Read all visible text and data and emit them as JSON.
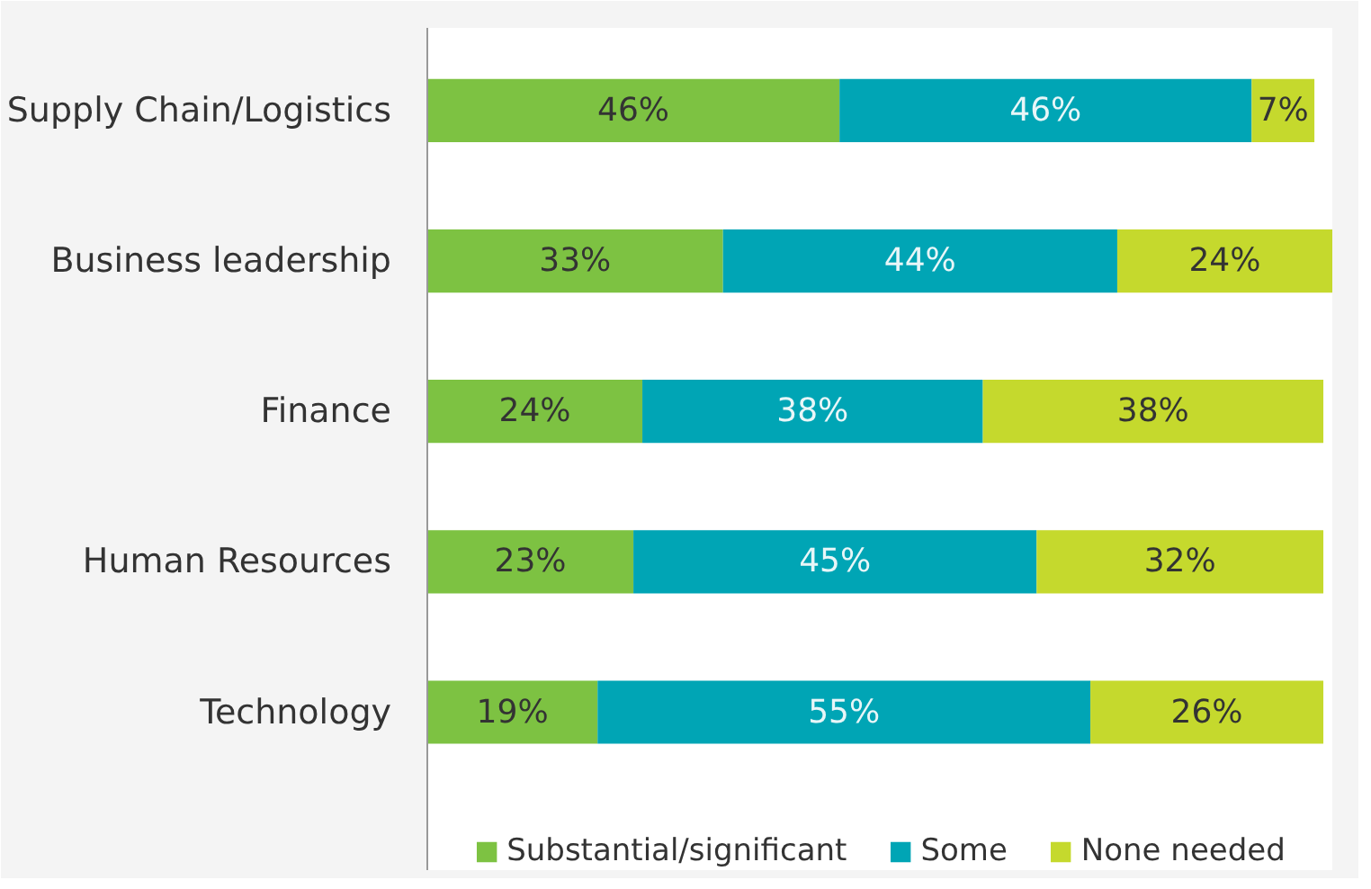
{
  "chart_data": {
    "type": "bar",
    "orientation": "horizontal",
    "stacked": true,
    "legend": "bottom",
    "grid": false,
    "tick_labels": "y",
    "categories": [
      "Supply Chain/Logistics",
      "Business leadership",
      "Finance",
      "Human Resources",
      "Technology"
    ],
    "series": [
      {
        "name": "Substantial/significant",
        "color": "#7dc242",
        "values": [
          46,
          33,
          24,
          23,
          19
        ],
        "value_labels": [
          "46%",
          "33%",
          "24%",
          "23%",
          "19%"
        ]
      },
      {
        "name": "Some",
        "color": "#00a5b5",
        "values": [
          46,
          44,
          38,
          45,
          55
        ],
        "value_labels": [
          "46%",
          "44%",
          "38%",
          "45%",
          "55%"
        ]
      },
      {
        "name": "None needed",
        "color": "#c5d92d",
        "values": [
          7,
          24,
          38,
          32,
          26
        ],
        "value_labels": [
          "7%",
          "24%",
          "38%",
          "32%",
          "26%"
        ]
      }
    ]
  }
}
